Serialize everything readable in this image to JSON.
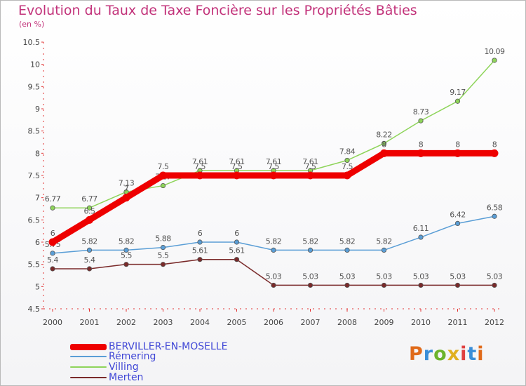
{
  "title": "Evolution du Taux de Taxe Foncière sur les Propriétés Bâties",
  "unit": "(en %)",
  "logo": {
    "text": "Proxiti",
    "colors": [
      "#e06a1a",
      "#3a8ed8",
      "#6cb32c",
      "#e0b020",
      "#e04040",
      "#3a8ed8",
      "#e06a1a"
    ]
  },
  "chart_data": {
    "type": "line",
    "x": [
      "2000",
      "2001",
      "2002",
      "2003",
      "2004",
      "2005",
      "2006",
      "2007",
      "2008",
      "2009",
      "2010",
      "2011",
      "2012"
    ],
    "ylim": [
      4.5,
      10.5
    ],
    "yticks": [
      "4.5",
      "5",
      "5.5",
      "6",
      "6.5",
      "7",
      "7.5",
      "8",
      "8.5",
      "9",
      "9.5",
      "10",
      "10.5"
    ],
    "grid": false,
    "legend_position": "bottom-left",
    "series": [
      {
        "name": "BERVILLER-EN-MOSELLE",
        "color": "#ee0000",
        "values": [
          6,
          6.5,
          7,
          7.5,
          7.5,
          7.5,
          7.5,
          7.5,
          7.5,
          8,
          8,
          8,
          8
        ],
        "labels": [
          "6",
          "6.5",
          "7",
          "7.5",
          "7.5",
          "7.5",
          "7.5",
          "7.5",
          "7.5",
          "8",
          "8",
          "8",
          "8"
        ]
      },
      {
        "name": "Rémering",
        "color": "#5a9ed6",
        "values": [
          5.75,
          5.82,
          5.82,
          5.88,
          6,
          6,
          5.82,
          5.82,
          5.82,
          5.82,
          6.11,
          6.42,
          6.58
        ],
        "labels": [
          "5.75",
          "5.82",
          "5.82",
          "5.88",
          "6",
          "6",
          "5.82",
          "5.82",
          "5.82",
          "5.82",
          "6.11",
          "6.42",
          "6.58"
        ]
      },
      {
        "name": "Villing",
        "color": "#8ed45a",
        "values": [
          6.77,
          6.77,
          7.13,
          7.27,
          7.61,
          7.61,
          7.61,
          7.61,
          7.84,
          8.22,
          8.73,
          9.17,
          10.09
        ],
        "labels": [
          "6.77",
          "6.77",
          "7.13",
          "7.27",
          "7.61",
          "7.61",
          "7.61",
          "7.61",
          "7.84",
          "8.22",
          "8.73",
          "9.17",
          "10.09"
        ]
      },
      {
        "name": "Merten",
        "color": "#7a2a2a",
        "values": [
          5.4,
          5.4,
          5.5,
          5.5,
          5.61,
          5.61,
          5.03,
          5.03,
          5.03,
          5.03,
          5.03,
          5.03,
          5.03
        ],
        "labels": [
          "5.4",
          "5.4",
          "5.5",
          "5.5",
          "5.61",
          "5.61",
          "5.03",
          "5.03",
          "5.03",
          "5.03",
          "5.03",
          "5.03",
          "5.03"
        ]
      }
    ]
  }
}
